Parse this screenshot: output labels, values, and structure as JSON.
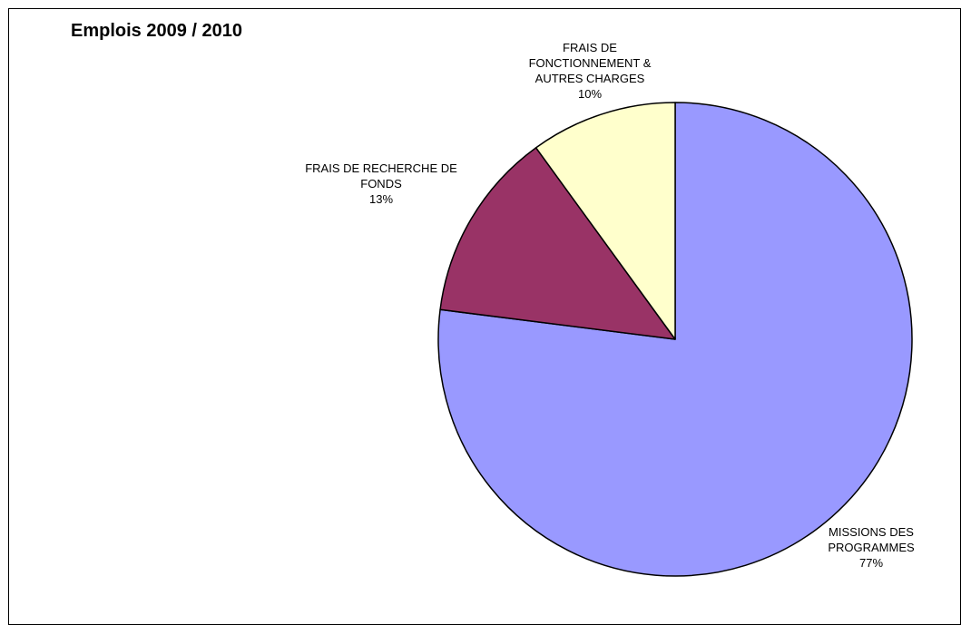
{
  "chart_data": {
    "type": "pie",
    "title": "Emplois 2009 / 2010",
    "start_angle_deg": 0,
    "direction": "clockwise",
    "slices": [
      {
        "label_lines": [
          "MISSIONS DES",
          "PROGRAMMES"
        ],
        "value": 77,
        "percent_label": "77%",
        "color": "#9999ff"
      },
      {
        "label_lines": [
          "FRAIS DE RECHERCHE DE",
          "FONDS"
        ],
        "value": 13,
        "percent_label": "13%",
        "color": "#993366"
      },
      {
        "label_lines": [
          "FRAIS DE",
          "FONCTIONNEMENT &",
          "AUTRES CHARGES"
        ],
        "value": 10,
        "percent_label": "10%",
        "color": "#ffffcc"
      }
    ],
    "legend": "none"
  }
}
